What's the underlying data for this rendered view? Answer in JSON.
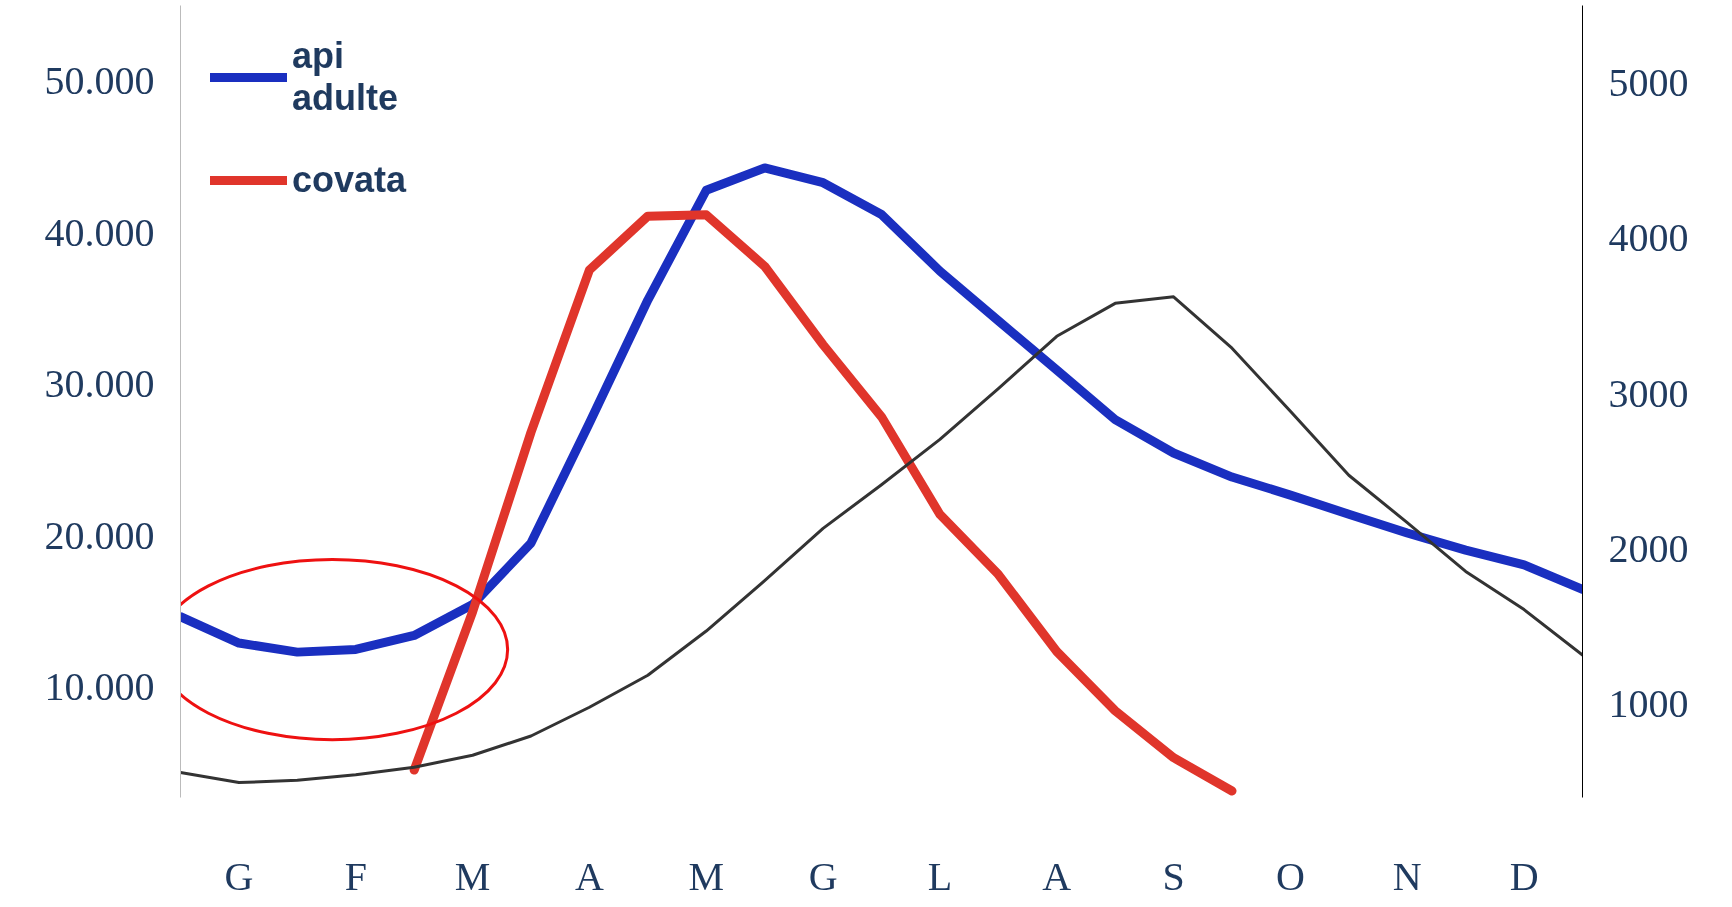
{
  "chart_data": {
    "type": "line",
    "categories": [
      null,
      "G",
      null,
      "F",
      null,
      "M",
      null,
      "A",
      null,
      "M",
      null,
      "G",
      null,
      "L",
      null,
      "A",
      null,
      "S",
      null,
      "O",
      null,
      "N",
      null,
      "D",
      null
    ],
    "ylim": [
      2700,
      55000
    ],
    "yticks": [
      {
        "value": 10000,
        "label": "10.000"
      },
      {
        "value": 20000,
        "label": "20.000"
      },
      {
        "value": 30000,
        "label": "30.000"
      },
      {
        "value": 40000,
        "label": "40.000"
      },
      {
        "value": 50000,
        "label": "50.000"
      }
    ],
    "y2lim": [
      400,
      5500
    ],
    "y2ticks": [
      1000,
      2000,
      3000,
      4000,
      5000
    ],
    "legend": "top left",
    "series": [
      {
        "name": "api\nadulte",
        "color": "#1a2fc0",
        "values": [
          14640,
          12900,
          12300,
          12480,
          13400,
          15440,
          19500,
          27430,
          35550,
          42800,
          44270,
          43300,
          41200,
          37460,
          34180,
          30930,
          27650,
          25450,
          23860,
          22670,
          21410,
          20170,
          19040,
          18060,
          16440
        ]
      },
      {
        "name": "covata",
        "color": "#e0352b",
        "values": [
          null,
          null,
          null,
          null,
          4510,
          14960,
          26820,
          37530,
          41090,
          41180,
          37780,
          32600,
          27840,
          21390,
          17430,
          12340,
          8430,
          5330,
          3130,
          null,
          null,
          null,
          null,
          null,
          null
        ]
      },
      {
        "color": "#333333",
        "axis": "y2",
        "values": [
          561,
          496,
          511,
          547,
          595,
          672,
          796,
          981,
          1187,
          1472,
          1796,
          2133,
          2414,
          2706,
          3033,
          3370,
          3582,
          3624,
          3293,
          2887,
          2475,
          2170,
          1856,
          1610,
          1317
        ]
      }
    ]
  }
}
